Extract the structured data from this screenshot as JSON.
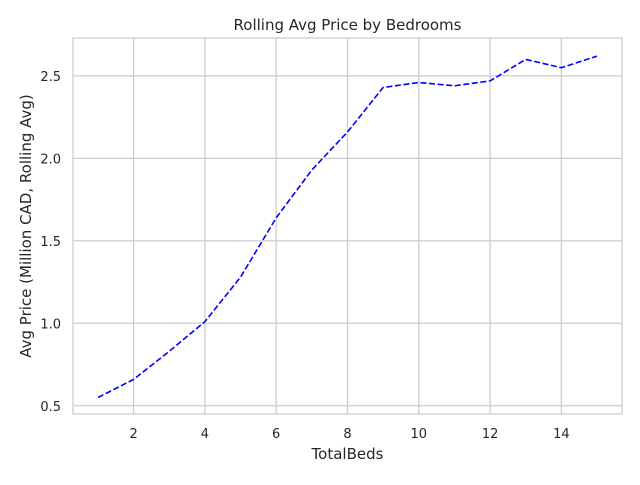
{
  "chart_data": {
    "type": "line",
    "title": "Rolling Avg Price by Bedrooms",
    "xlabel": "TotalBeds",
    "ylabel": "Avg Price (Million CAD, Rolling Avg)",
    "xlim": [
      0.3,
      15.7
    ],
    "ylim": [
      0.45,
      2.73
    ],
    "xticks": [
      2,
      4,
      6,
      8,
      10,
      12,
      14
    ],
    "yticks": [
      0.5,
      1.0,
      1.5,
      2.0,
      2.5
    ],
    "xtick_labels": [
      "2",
      "4",
      "6",
      "8",
      "10",
      "12",
      "14"
    ],
    "ytick_labels": [
      "0.5",
      "1.0",
      "1.5",
      "2.0",
      "2.5"
    ],
    "grid": true,
    "series": [
      {
        "style": "dashed",
        "color": "#0000ff",
        "x": [
          1,
          2,
          3,
          4,
          5,
          6,
          7,
          8,
          9,
          10,
          11,
          12,
          13,
          14,
          15
        ],
        "y": [
          0.55,
          0.66,
          0.83,
          1.01,
          1.28,
          1.64,
          1.93,
          2.16,
          2.43,
          2.46,
          2.44,
          2.47,
          2.6,
          2.55,
          2.62
        ]
      }
    ]
  }
}
